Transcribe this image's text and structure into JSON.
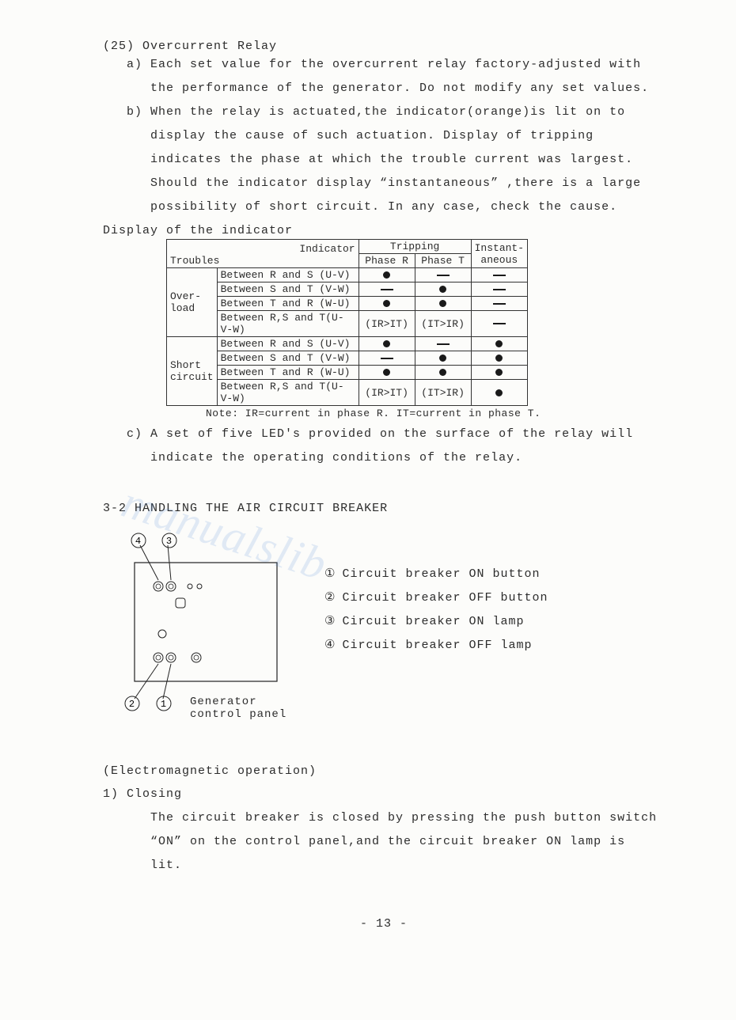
{
  "section25": {
    "number": "(25)",
    "title": "Overcurrent Relay",
    "item_a_label": "a)",
    "item_a": "Each set value for the overcurrent relay factory-adjusted with the performance of the generator. Do not modify any set values.",
    "item_b_label": "b)",
    "item_b": "When the relay is actuated,the indicator(orange)is lit on to display the cause of such actuation. Display of tripping indicates the phase at which the trouble current was largest. Should the indicator display “instantaneous” ,there is a large possibility of short circuit. In any case, check the cause.",
    "display_label": "Display of the indicator",
    "item_c_label": "c)",
    "item_c": "A set of five LED's provided on the surface of the relay will indicate the operating conditions of the relay."
  },
  "table": {
    "h_indicator": "Indicator",
    "h_troubles": "Troubles",
    "h_tripping": "Tripping",
    "h_phaseR": "Phase R",
    "h_phaseT": "Phase T",
    "h_instant": "Instant-aneous",
    "cat_overload": "Over-load",
    "cat_short": "Short circuit",
    "rows": [
      {
        "cond": "Between R and S (U-V)",
        "r": "dot",
        "t": "dash",
        "i": "dash"
      },
      {
        "cond": "Between S and T (V-W)",
        "r": "dash",
        "t": "dot",
        "i": "dash"
      },
      {
        "cond": "Between T and R (W-U)",
        "r": "dot",
        "t": "dot",
        "i": "dash"
      },
      {
        "cond": "Between R,S and T(U-V-W)",
        "r": "(IR>IT)",
        "t": "(IT>IR)",
        "i": "dash"
      },
      {
        "cond": "Between R and S (U-V)",
        "r": "dot",
        "t": "dash",
        "i": "dot"
      },
      {
        "cond": "Between S and T (V-W)",
        "r": "dash",
        "t": "dot",
        "i": "dot"
      },
      {
        "cond": "Between T and R (W-U)",
        "r": "dot",
        "t": "dot",
        "i": "dot"
      },
      {
        "cond": "Between R,S and T(U-V-W)",
        "r": "(IR>IT)",
        "t": "(IT>IR)",
        "i": "dot"
      }
    ],
    "note": "Note: IR=current in phase R.  IT=current in phase T."
  },
  "section32": {
    "number": "3-2",
    "title": "HANDLING THE AIR CIRCUIT BREAKER",
    "panel_label": "Generator control panel",
    "legend": [
      {
        "n": "①",
        "text": "Circuit breaker ON button"
      },
      {
        "n": "②",
        "text": "Circuit breaker OFF button"
      },
      {
        "n": "③",
        "text": "Circuit breaker ON lamp"
      },
      {
        "n": "④",
        "text": "Circuit breaker OFF lamp"
      }
    ],
    "callouts": {
      "c1": "1",
      "c2": "2",
      "c3": "3",
      "c4": "4"
    }
  },
  "electro": {
    "title": "(Electromagnetic operation)",
    "item1_label": "1)",
    "item1_title": "Closing",
    "item1_text": "The circuit breaker is closed by pressing the push button switch “ON” on the control panel,and the circuit breaker ON lamp is lit."
  },
  "page": "- 13 -",
  "watermark": "manualslib"
}
